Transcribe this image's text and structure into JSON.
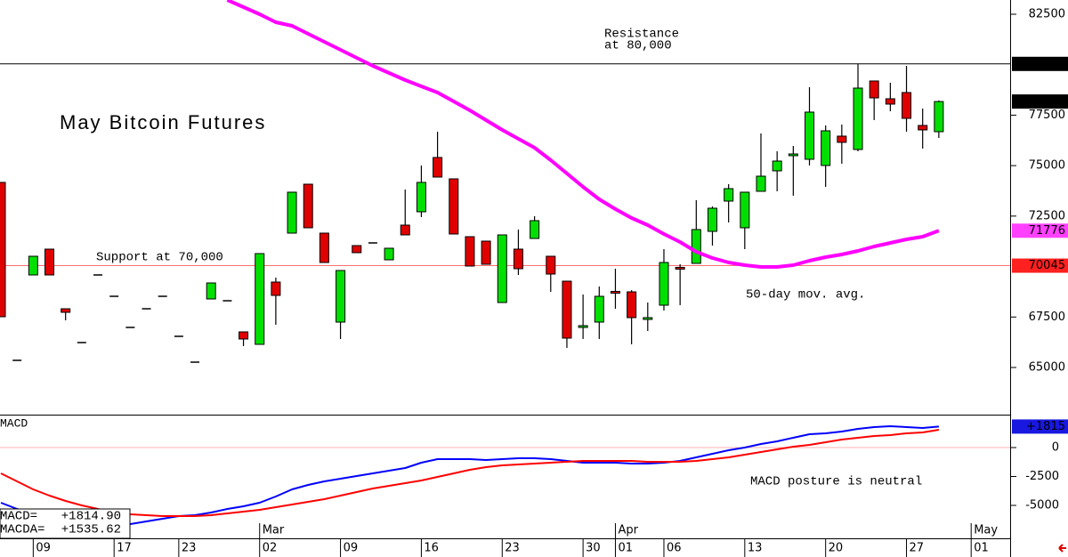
{
  "chart_data": [
    {
      "type": "candlestick",
      "title": "May Bitcoin Futures",
      "categories": [
        null,
        null,
        "09",
        null,
        null,
        null,
        null,
        "17",
        null,
        null,
        null,
        "23",
        null,
        null,
        null,
        null,
        "02",
        null,
        null,
        null,
        null,
        "09",
        null,
        null,
        null,
        null,
        "16",
        null,
        null,
        null,
        null,
        "23",
        null,
        null,
        null,
        null,
        "30",
        null,
        "01",
        null,
        null,
        "06",
        null,
        null,
        null,
        null,
        "13",
        null,
        null,
        null,
        null,
        "20",
        null,
        null,
        null,
        null,
        "27",
        null,
        null,
        null,
        "01"
      ],
      "month_labels": [
        null,
        null,
        null,
        null,
        null,
        null,
        null,
        null,
        null,
        null,
        null,
        null,
        null,
        null,
        null,
        null,
        "Mar",
        null,
        null,
        null,
        null,
        null,
        null,
        null,
        null,
        null,
        null,
        null,
        null,
        null,
        null,
        null,
        null,
        null,
        null,
        null,
        null,
        null,
        "Apr",
        null,
        null,
        null,
        null,
        null,
        null,
        null,
        null,
        null,
        null,
        null,
        null,
        null,
        null,
        null,
        null,
        null,
        null,
        null,
        null,
        null,
        "May"
      ],
      "open": [
        74169,
        65353,
        69584,
        70863,
        67909,
        66234,
        69584,
        68526,
        66984,
        67909,
        68526,
        66543,
        65264,
        68394,
        68306,
        66763,
        66146,
        69232,
        71656,
        74080,
        71656,
        67248,
        71039,
        71171,
        70334,
        72053,
        72714,
        75403,
        74345,
        71480,
        71260,
        68218,
        70863,
        71392,
        70510,
        69276,
        67050,
        67248,
        68770,
        68747,
        67450,
        68086,
        69960,
        70157,
        71744,
        73243,
        71921,
        73728,
        74741,
        75560,
        75315,
        75006,
        76461,
        75800,
        79194,
        78312,
        78621,
        76990,
        76681,
        null,
        null
      ],
      "high": [
        74169,
        65353,
        70510,
        70863,
        67909,
        66234,
        69584,
        68526,
        66984,
        67909,
        68526,
        66543,
        65264,
        69188,
        68306,
        66763,
        70642,
        69452,
        73684,
        74080,
        71656,
        69805,
        71039,
        71171,
        70907,
        73816,
        75006,
        76681,
        74345,
        71480,
        71260,
        71568,
        71833,
        72494,
        70510,
        69276,
        68615,
        69011,
        69893,
        68830,
        68218,
        70863,
        70113,
        73287,
        72978,
        74080,
        73684,
        76593,
        75711,
        75976,
        78885,
        76990,
        77034,
        80031,
        79194,
        79106,
        79943,
        77827,
        78224,
        null,
        null
      ],
      "low": [
        67513,
        65353,
        69584,
        69584,
        67336,
        66234,
        69584,
        68526,
        66984,
        67909,
        68526,
        66543,
        65264,
        68394,
        68306,
        66058,
        66146,
        67116,
        71656,
        71921,
        70201,
        66411,
        70687,
        71171,
        70334,
        71568,
        72450,
        74433,
        71612,
        70025,
        70113,
        68218,
        69584,
        71392,
        68747,
        65970,
        66411,
        66411,
        67909,
        66146,
        66807,
        67821,
        68086,
        70157,
        71039,
        72185,
        70863,
        73728,
        73728,
        73507,
        75006,
        73948,
        75094,
        75711,
        77254,
        77695,
        76681,
        75844,
        76373,
        null,
        null
      ],
      "close": [
        67513,
        65353,
        70510,
        69584,
        67733,
        66234,
        69584,
        68526,
        66984,
        67909,
        68526,
        66543,
        65264,
        69188,
        68306,
        66411,
        70642,
        68571,
        73684,
        71921,
        70201,
        69805,
        70687,
        71171,
        70907,
        71568,
        74169,
        74433,
        71612,
        70025,
        70113,
        71568,
        69893,
        72273,
        69628,
        66455,
        67072,
        68526,
        68747,
        67469,
        67469,
        70201,
        69937,
        71833,
        72890,
        73860,
        73684,
        74477,
        75226,
        75579,
        77651,
        76725,
        76152,
        78841,
        78356,
        78048,
        77342,
        76770,
        78175,
        null,
        null
      ],
      "up_color": "#00e000",
      "down_color": "#e00000",
      "flat_color": "#000000",
      "series": [
        {
          "name": "50-day mov. avg.",
          "color": "#ff00ff",
          "values": [
            null,
            null,
            null,
            null,
            null,
            null,
            null,
            null,
            null,
            null,
            null,
            null,
            null,
            null,
            83205,
            82852,
            82500,
            82103,
            81927,
            81530,
            81133,
            80737,
            80340,
            79943,
            79590,
            79238,
            78929,
            78621,
            78180,
            77739,
            77254,
            76770,
            76329,
            75888,
            75270,
            74609,
            73948,
            73331,
            72846,
            72405,
            72053,
            71612,
            71215,
            70730,
            70422,
            70201,
            70069,
            69981,
            69981,
            70069,
            70290,
            70466,
            70598,
            70774,
            70995,
            71171,
            71348,
            71480,
            71776,
            null,
            null
          ]
        }
      ],
      "ylim": [
        62664,
        83205
      ],
      "yticks": [
        82500,
        77500,
        75000,
        72500,
        67500,
        65000
      ],
      "resistance": {
        "value": 80040,
        "label": [
          "Resistance",
          "at 80,000"
        ],
        "color": "#000000"
      },
      "support": {
        "value": 70045,
        "label": "Support at 70,000",
        "color": "#ff7070"
      },
      "tags": [
        {
          "value": 80040,
          "color": "#000000"
        },
        {
          "value": 78175,
          "color": "#000000"
        },
        {
          "value": 71776,
          "color": "#ff40ff"
        },
        {
          "value": 70045,
          "color": "#ff2020"
        }
      ]
    },
    {
      "type": "line",
      "title": "MACD",
      "series": [
        {
          "color": "#0000ff",
          "values": [
            -4769,
            -5308,
            -5769,
            -6154,
            -6385,
            -6615,
            -6692,
            -6692,
            -6615,
            -6385,
            -6154,
            -5923,
            -5846,
            -5615,
            -5308,
            -5077,
            -4769,
            -4231,
            -3615,
            -3231,
            -2923,
            -2692,
            -2462,
            -2231,
            -2000,
            -1769,
            -1308,
            -1000,
            -1000,
            -1000,
            -1077,
            -1000,
            -923,
            -923,
            -1000,
            -1154,
            -1308,
            -1308,
            -1308,
            -1385,
            -1385,
            -1308,
            -1154,
            -846,
            -538,
            -231,
            0,
            308,
            538,
            846,
            1154,
            1231,
            1385,
            1615,
            1769,
            1846,
            1769,
            1692,
            1814.9,
            null,
            null
          ]
        },
        {
          "color": "#ff0000",
          "values": [
            -2231,
            -2923,
            -3615,
            -4154,
            -4615,
            -5000,
            -5308,
            -5615,
            -5769,
            -5846,
            -5923,
            -5923,
            -5923,
            -5846,
            -5692,
            -5538,
            -5385,
            -5154,
            -4923,
            -4692,
            -4462,
            -4154,
            -3846,
            -3538,
            -3308,
            -3077,
            -2846,
            -2538,
            -2231,
            -1923,
            -1692,
            -1538,
            -1462,
            -1385,
            -1308,
            -1231,
            -1154,
            -1154,
            -1154,
            -1154,
            -1231,
            -1231,
            -1231,
            -1154,
            -1000,
            -846,
            -615,
            -385,
            -154,
            77,
            231,
            462,
            692,
            846,
            1000,
            1077,
            1231,
            1308,
            1535.62,
            null,
            null
          ]
        }
      ],
      "ylim": [
        -7846,
        2769
      ],
      "yticks": [
        0,
        -2500,
        -5000
      ],
      "zero_line_color": "#ffb0b0",
      "readout": [
        {
          "name": "MACD=",
          "label": "+1814.90"
        },
        {
          "name": "MACDA=",
          "label": "+1535.62"
        }
      ],
      "annotation": "MACD posture is neutral",
      "tags": [
        {
          "value": 1815,
          "label": "+1815",
          "color": "#1818e0"
        }
      ]
    }
  ]
}
